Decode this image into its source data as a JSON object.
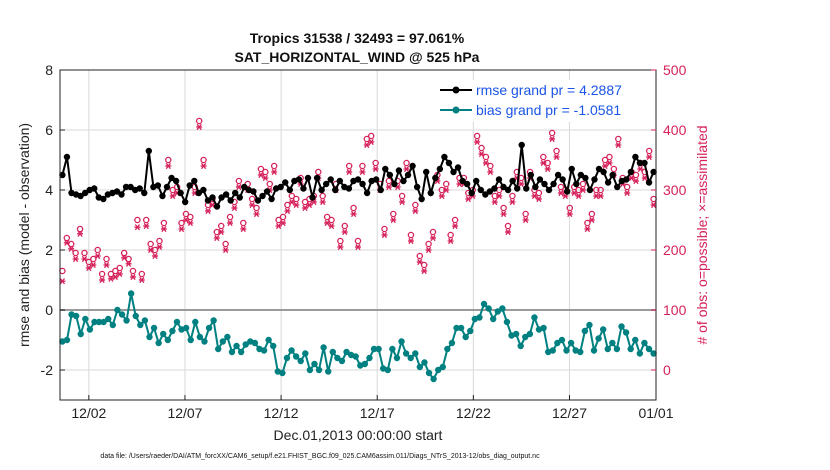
{
  "chart_data": {
    "type": "line",
    "title_line1": "Tropics 31538 / 32493 = 97.061%",
    "title_line2": "SAT_HORIZONTAL_WIND @ 525 hPa",
    "xlabel": "Dec.01,2013 00:00:00 start",
    "ylabel_left": "rmse and bias (model - observation)",
    "ylabel_right": "# of obs: o=possible; ×=assimilated",
    "xlim": [
      0,
      31
    ],
    "ylim_left": [
      -3,
      8
    ],
    "ylim_right": [
      -50,
      500
    ],
    "x_ticks": [
      {
        "v": 1.5,
        "label": "12/02"
      },
      {
        "v": 6.5,
        "label": "12/07"
      },
      {
        "v": 11.5,
        "label": "12/12"
      },
      {
        "v": 16.5,
        "label": "12/17"
      },
      {
        "v": 21.5,
        "label": "12/22"
      },
      {
        "v": 26.5,
        "label": "12/27"
      },
      {
        "v": 31,
        "label": "01/01"
      }
    ],
    "y_ticks_left": [
      "-2",
      "0",
      "2",
      "4",
      "6",
      "8"
    ],
    "y_ticks_right": [
      "0",
      "100",
      "200",
      "300",
      "400",
      "500"
    ],
    "zero_line": 0,
    "colors": {
      "rmse": "#000000",
      "bias": "#008080",
      "obs": "#d6225a",
      "legend_text": "#1a55e6"
    },
    "series": [
      {
        "name": "rmse grand pr = 4.2887",
        "values": [
          4.5,
          5.1,
          3.9,
          3.85,
          3.8,
          3.9,
          4,
          4.05,
          3.75,
          3.7,
          3.85,
          3.9,
          3.95,
          3.85,
          4.1,
          4.1,
          4.0,
          4.05,
          3.9,
          5.3,
          4.1,
          4.15,
          3.8,
          4.1,
          4.4,
          4.3,
          3.9,
          3.6,
          4.15,
          4.3,
          3.9,
          4.0,
          3.65,
          3.75,
          3.45,
          3.75,
          3.85,
          3.65,
          3.9,
          3.75,
          4.1,
          4.0,
          3.95,
          3.65,
          3.8,
          3.95,
          3.7,
          4.05,
          4.1,
          4.25,
          4.0,
          4.3,
          4.35,
          4.05,
          4.4,
          3.75,
          4.4,
          4.0,
          4.2,
          4.35,
          4.0,
          4.3,
          4.1,
          4.05,
          4.3,
          4.35,
          4.2,
          3.9,
          4.3,
          4.35,
          4.0,
          4.7,
          4.5,
          4.2,
          4.65,
          4.3,
          4.5,
          4.8,
          4.1,
          3.7,
          4.6,
          3.9,
          4.4,
          4.7,
          5.1,
          4.9,
          4.6,
          4.75,
          4.3,
          4.2,
          3.9,
          4.3,
          4.0,
          3.85,
          3.95,
          4.05,
          4.35,
          4.1,
          4.0,
          4.3,
          4.05,
          5.5,
          4.05,
          4.5,
          4.1,
          4.35,
          4.2,
          4.0,
          4.2,
          4.5,
          4.35,
          3.95,
          4.7,
          4.2,
          4.5,
          4.4,
          4.0,
          4.35,
          4.7,
          4.6,
          4.25,
          4.5,
          4.1,
          4.3,
          4.35,
          4.6,
          5.1,
          4.9,
          4.9,
          4.25,
          4.6
        ]
      },
      {
        "name": "bias grand pr = -1.0581",
        "values": [
          -1.05,
          -1.0,
          -0.15,
          -0.2,
          -0.8,
          -0.3,
          -0.65,
          -0.4,
          -0.4,
          -0.4,
          -0.3,
          -0.5,
          0.0,
          -0.15,
          -0.35,
          0.55,
          -0.2,
          -0.5,
          -0.35,
          -0.9,
          -0.6,
          -1.1,
          -0.8,
          -1.0,
          -0.7,
          -0.4,
          -0.65,
          -0.6,
          -1.0,
          -0.4,
          -0.9,
          -1.05,
          -0.6,
          -0.35,
          -1.3,
          -1.05,
          -0.9,
          -1.4,
          -1.2,
          -1.4,
          -1.15,
          -1.05,
          -1.1,
          -1.3,
          -1.35,
          -1.0,
          -1.2,
          -2.05,
          -2.1,
          -1.6,
          -1.35,
          -1.55,
          -1.7,
          -1.45,
          -2.0,
          -1.8,
          -2.0,
          -1.25,
          -2.05,
          -1.4,
          -1.6,
          -1.7,
          -1.4,
          -1.5,
          -1.55,
          -1.85,
          -1.8,
          -1.6,
          -1.3,
          -1.3,
          -1.95,
          -2.0,
          -1.3,
          -1.6,
          -1.05,
          -1.45,
          -1.6,
          -1.45,
          -1.9,
          -1.75,
          -2.1,
          -2.3,
          -2.0,
          -1.9,
          -1.3,
          -1.1,
          -0.6,
          -0.6,
          -0.9,
          -0.7,
          -0.3,
          -0.25,
          0.2,
          0.05,
          -0.3,
          -0.05,
          0.05,
          -0.4,
          -0.85,
          -0.8,
          -1.2,
          -0.9,
          -0.8,
          -0.25,
          -0.65,
          -0.6,
          -1.4,
          -1.35,
          -1.1,
          -1.0,
          -1.35,
          -1.1,
          -1.35,
          -1.4,
          -0.7,
          -0.5,
          -1.35,
          -0.95,
          -0.65,
          -1.3,
          -1.1,
          -1.3,
          -0.55,
          -0.75,
          -1.3,
          -1.0,
          -1.45,
          -1.1,
          -1.3,
          -1.45
        ]
      },
      {
        "name": "obs possible",
        "values": [
          165,
          220,
          210,
          195,
          235,
          195,
          180,
          185,
          200,
          160,
          185,
          160,
          165,
          170,
          195,
          185,
          165,
          250,
          160,
          250,
          210,
          200,
          215,
          245,
          350,
          300,
          305,
          245,
          260,
          255,
          305,
          415,
          350,
          275,
          285,
          230,
          240,
          210,
          255,
          280,
          315,
          245,
          310,
          285,
          270,
          335,
          330,
          310,
          340,
          250,
          255,
          275,
          290,
          285,
          320,
          280,
          285,
          290,
          330,
          290,
          255,
          250,
          310,
          215,
          240,
          340,
          270,
          215,
          340,
          385,
          390,
          345,
          310,
          235,
          315,
          260,
          315,
          290,
          345,
          225,
          275,
          190,
          175,
          210,
          230,
          325,
          300,
          310,
          225,
          250,
          320,
          320,
          295,
          300,
          390,
          370,
          355,
          340,
          290,
          300,
          270,
          240,
          290,
          330,
          320,
          260,
          330,
          300,
          295,
          355,
          345,
          395,
          365,
          305,
          300,
          270,
          305,
          300,
          310,
          245,
          260,
          300,
          300,
          350,
          355,
          335,
          385,
          320,
          305,
          330,
          325,
          345,
          330,
          365,
          285
        ]
      },
      {
        "name": "obs assimilated",
        "values": [
          148,
          212,
          202,
          185,
          227,
          185,
          170,
          175,
          190,
          150,
          175,
          152,
          155,
          160,
          187,
          177,
          155,
          238,
          150,
          240,
          200,
          190,
          205,
          235,
          340,
          290,
          295,
          235,
          250,
          245,
          295,
          405,
          340,
          265,
          275,
          220,
          230,
          200,
          245,
          270,
          305,
          235,
          300,
          275,
          260,
          325,
          320,
          300,
          330,
          240,
          245,
          265,
          280,
          275,
          310,
          270,
          275,
          280,
          320,
          280,
          245,
          240,
          300,
          205,
          230,
          330,
          260,
          205,
          330,
          375,
          380,
          335,
          300,
          225,
          305,
          250,
          305,
          280,
          335,
          215,
          265,
          180,
          165,
          200,
          220,
          315,
          290,
          300,
          215,
          240,
          310,
          310,
          285,
          290,
          380,
          360,
          345,
          330,
          280,
          290,
          260,
          230,
          280,
          320,
          310,
          250,
          320,
          290,
          285,
          345,
          335,
          385,
          355,
          295,
          290,
          260,
          295,
          290,
          300,
          235,
          250,
          290,
          290,
          340,
          345,
          325,
          375,
          310,
          295,
          320,
          315,
          335,
          320,
          355,
          275
        ]
      }
    ],
    "legend": [
      {
        "label": "rmse grand pr = 4.2887",
        "color": "#000000"
      },
      {
        "label": "bias grand pr = -1.0581",
        "color": "#008080"
      }
    ],
    "legend_position": "top-right"
  },
  "footnote": "data file: /Users/raeder/DAI/ATM_forcXX/CAM6_setup/f.e21.FHIST_BGC.f09_025.CAM6assim.011/Diags_NTrS_2013-12/obs_diag_output.nc"
}
